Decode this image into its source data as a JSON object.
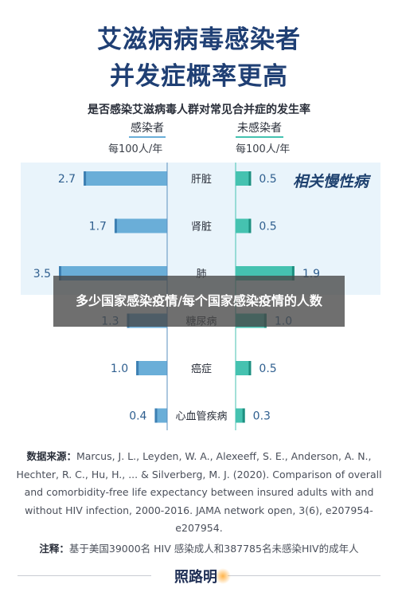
{
  "header": {
    "title_line1": "艾滋病病毒感染者",
    "title_line2": "并发症概率更高"
  },
  "colors": {
    "infected": "#6aaed8",
    "infected_dark": "#3d7fb2",
    "uninfected": "#45c2b0",
    "uninfected_dark": "#1e8f80",
    "band": "#e9f4fb",
    "title": "#1f3f74"
  },
  "chart_data": {
    "type": "bar",
    "title": "是否感染艾滋病毒人群对常见合并症的发生率",
    "categories": [
      "肝脏",
      "肾脏",
      "肺",
      "糖尿病",
      "癌症",
      "心血管疾病"
    ],
    "series": [
      {
        "name": "感染者",
        "unit": "每100人/年",
        "values": [
          2.7,
          1.7,
          3.5,
          1.3,
          1.0,
          0.4
        ]
      },
      {
        "name": "未感染者",
        "unit": "每100人/年",
        "values": [
          0.5,
          0.5,
          1.9,
          1.0,
          0.5,
          0.3
        ]
      }
    ],
    "value_labels_left": [
      "2.7",
      "1.7",
      "3.5",
      "1.3",
      "1.0",
      "0.4"
    ],
    "value_labels_right": [
      "0.5",
      "0.5",
      "1.9",
      "1.0",
      "0.5",
      "0.3"
    ],
    "band_label": "相关慢性病",
    "xlim": [
      0,
      3.5
    ],
    "grid": false,
    "legend": "top-center"
  },
  "overlay": {
    "banner_text": "多少国家感染疫情/每个国家感染疫情的人数"
  },
  "source": {
    "label": "数据来源：",
    "text": "Marcus, J. L., Leyden, W. A., Alexeeff, S. E., Anderson, A. N., Hechter, R. C., Hu, H., ... & Silverberg, M. J. (2020). Comparison of overall and comorbidity-free life expectancy between insured adults with and without HIV infection, 2000-2016. JAMA network open, 3(6), e207954-e207954."
  },
  "note": {
    "label": "注释：",
    "text": "基于美国39000名 HIV 感染成人和387785名未感染HIV的成年人"
  },
  "footer": {
    "logo_text": "照路明"
  }
}
